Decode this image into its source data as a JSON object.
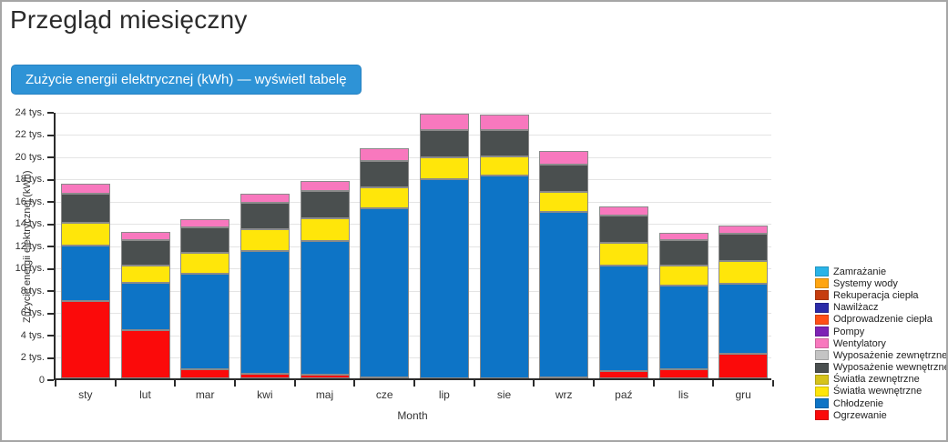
{
  "page": {
    "title": "Przegląd miesięczny",
    "table_button_label": "Zużycie energii elektrycznej (kWh) — wyświetl tabelę"
  },
  "colors": {
    "button_bg": "#2e93d6",
    "button_text": "#ffffff",
    "axis_line": "#2b2b2b",
    "gridline": "#e4e4e4",
    "segment_border": "#8a8a8a"
  },
  "chart_data": {
    "type": "bar",
    "stacked": true,
    "xlabel": "Month",
    "ylabel": "Zużycie energii elektrycznej (kWh)",
    "ylim": [
      0,
      24000
    ],
    "ytick_step": 2000,
    "ytick_labels": [
      "0",
      "2 tys.",
      "4 tys.",
      "6 tys.",
      "8 tys.",
      "10 tys.",
      "12 tys.",
      "14 tys.",
      "16 tys.",
      "18 tys.",
      "20 tys.",
      "22 tys.",
      "24 tys."
    ],
    "grid": true,
    "legend_position": "right",
    "legend_order": "reverse-of-stack",
    "categories": [
      "sty",
      "lut",
      "mar",
      "kwi",
      "maj",
      "cze",
      "lip",
      "sie",
      "wrz",
      "paź",
      "lis",
      "gru"
    ],
    "series": [
      {
        "name": "Ogrzewanie",
        "color": "#fb0a0a",
        "values": [
          6900,
          4300,
          850,
          450,
          300,
          50,
          0,
          0,
          100,
          650,
          850,
          2200
        ]
      },
      {
        "name": "Chłodzenie",
        "color": "#0d74c6",
        "values": [
          5000,
          4250,
          8550,
          10950,
          12050,
          15250,
          17900,
          18200,
          14850,
          9500,
          7500,
          6300
        ]
      },
      {
        "name": "Światła wewnętrzne",
        "color": "#ffe60a",
        "values": [
          2050,
          1600,
          1850,
          1950,
          2050,
          1850,
          1900,
          1750,
          1800,
          2050,
          1750,
          2000
        ]
      },
      {
        "name": "Światła zewnętrzne",
        "color": "#d6c31a",
        "values": [
          0,
          0,
          0,
          0,
          0,
          0,
          0,
          0,
          0,
          0,
          0,
          0
        ]
      },
      {
        "name": "Wyposażenie wewnętrzne",
        "color": "#4a4f4f",
        "values": [
          2600,
          2250,
          2300,
          2400,
          2450,
          2400,
          2450,
          2300,
          2450,
          2450,
          2350,
          2500
        ]
      },
      {
        "name": "Wyposażenie zewnętrzne",
        "color": "#c4c4c4",
        "values": [
          0,
          0,
          0,
          0,
          0,
          0,
          0,
          0,
          0,
          0,
          0,
          0
        ]
      },
      {
        "name": "Wentylatory",
        "color": "#f878be",
        "values": [
          950,
          750,
          750,
          850,
          850,
          1100,
          1500,
          1400,
          1200,
          800,
          600,
          700
        ]
      },
      {
        "name": "Pompy",
        "color": "#7d22b5",
        "values": [
          0,
          0,
          0,
          0,
          0,
          0,
          0,
          0,
          0,
          0,
          0,
          0
        ]
      },
      {
        "name": "Odprowadzenie ciepła",
        "color": "#ff4f16",
        "values": [
          0,
          0,
          0,
          0,
          0,
          0,
          0,
          0,
          0,
          0,
          0,
          0
        ]
      },
      {
        "name": "Nawilżacz",
        "color": "#2b2ba8",
        "values": [
          0,
          0,
          0,
          0,
          0,
          0,
          0,
          0,
          0,
          0,
          0,
          0
        ]
      },
      {
        "name": "Rekuperacja ciepła",
        "color": "#c63d0e",
        "values": [
          0,
          0,
          0,
          0,
          0,
          0,
          0,
          0,
          0,
          0,
          0,
          0
        ]
      },
      {
        "name": "Systemy wody",
        "color": "#ffa511",
        "values": [
          0,
          0,
          0,
          0,
          0,
          0,
          0,
          0,
          0,
          0,
          0,
          0
        ]
      },
      {
        "name": "Zamrażanie",
        "color": "#29b4e8",
        "values": [
          0,
          0,
          0,
          0,
          0,
          0,
          0,
          0,
          0,
          0,
          0,
          0
        ]
      }
    ]
  }
}
